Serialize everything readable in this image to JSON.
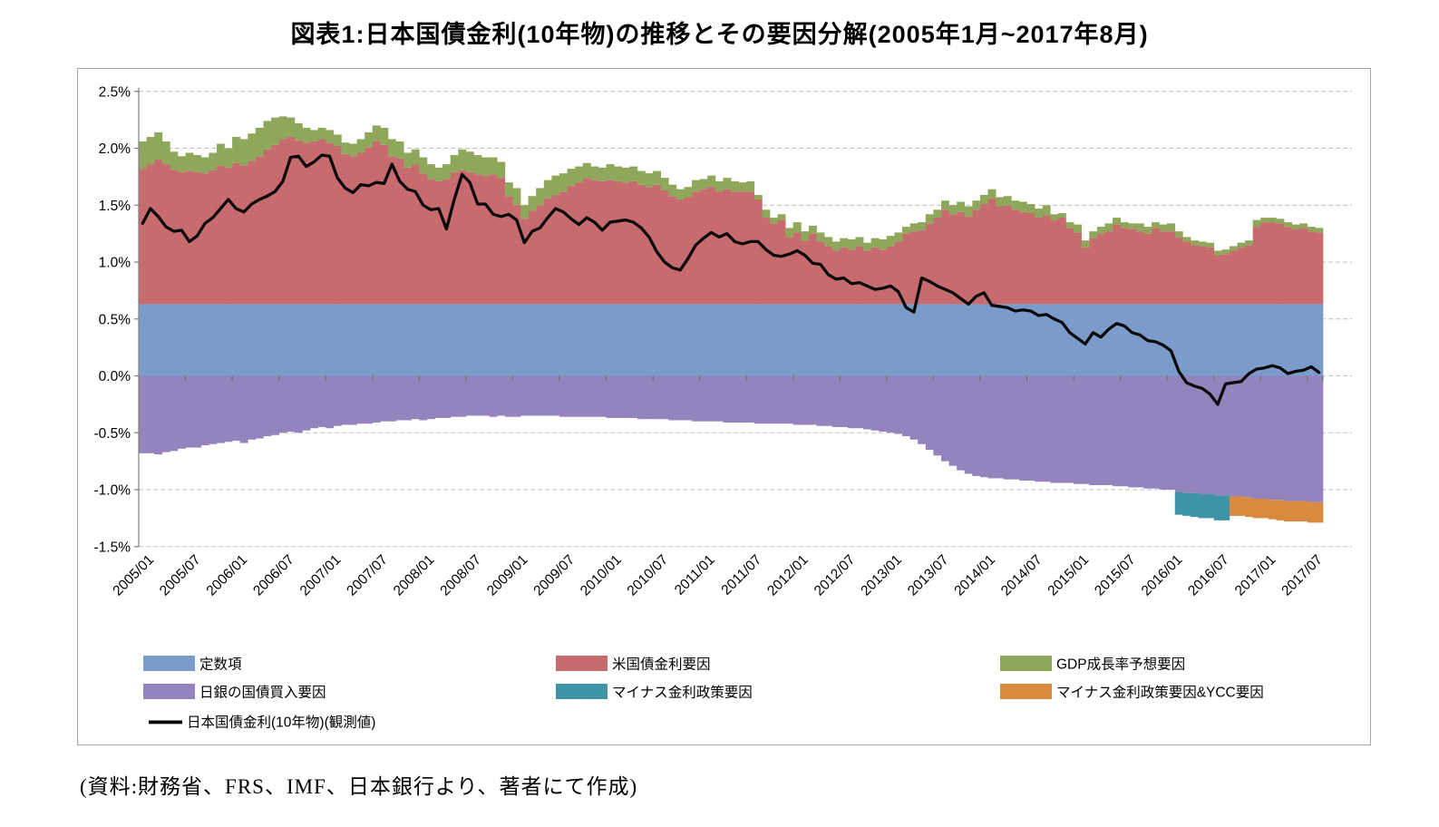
{
  "title": "図表1:日本国債金利(10年物)の推移とその要因分解(2005年1月~2017年8月)",
  "source_note": "(資料:財務省、FRS、IMF、日本銀行より、著者にて作成)",
  "chart": {
    "y_axis": {
      "labels": [
        "2.5%",
        "2.0%",
        "1.5%",
        "1.0%",
        "0.5%",
        "0.0%",
        "-0.5%",
        "-1.0%",
        "-1.5%"
      ],
      "max": 2.5,
      "min": -1.5,
      "step": 0.5
    },
    "x_axis": {
      "tick_labels": [
        "2005/01",
        "2005/07",
        "2006/01",
        "2006/07",
        "2007/01",
        "2007/07",
        "2008/01",
        "2008/07",
        "2009/01",
        "2009/07",
        "2010/01",
        "2010/07",
        "2011/01",
        "2011/07",
        "2012/01",
        "2012/07",
        "2013/01",
        "2013/07",
        "2014/01",
        "2014/07",
        "2015/01",
        "2015/07",
        "2016/01",
        "2016/07",
        "2017/01",
        "2017/07"
      ]
    },
    "legend": [
      {
        "label": "定数項",
        "color": "#7b9ccb",
        "shape": "rect",
        "col": 0,
        "row": 0
      },
      {
        "label": "米国債金利要因",
        "color": "#c76b6e",
        "shape": "rect",
        "col": 1,
        "row": 0
      },
      {
        "label": "GDP成長率予想要因",
        "color": "#8fa75b",
        "shape": "rect",
        "col": 2,
        "row": 0
      },
      {
        "label": "日銀の国債買入要因",
        "color": "#9384be",
        "shape": "rect",
        "col": 0,
        "row": 1
      },
      {
        "label": "マイナス金利政策要因",
        "color": "#3f93a6",
        "shape": "rect",
        "col": 1,
        "row": 1
      },
      {
        "label": "マイナス金利政策要因&YCC要因",
        "color": "#d98a3f",
        "shape": "rect",
        "col": 2,
        "row": 1
      },
      {
        "label": "日本国債金利(10年物)(観測値)",
        "color": "#000000",
        "shape": "line",
        "col": 0,
        "row": 2
      }
    ],
    "colors": {
      "gridline": "#bfbfbf",
      "axis": "#808080",
      "frame": "#a6a6a6",
      "observed_line": "#0a0a0a"
    }
  },
  "chart_data": {
    "type": "stacked-bar+line",
    "x_start": "2005/01",
    "x_end": "2017/08",
    "n_months": 152,
    "ylim": [
      -1.5,
      2.5
    ],
    "grid": true,
    "legend_position": "bottom",
    "units": "percent",
    "series": [
      {
        "name": "定数項",
        "type": "bar",
        "color": "#7b9ccb",
        "constant": 0.63
      },
      {
        "name": "米国債金利要因",
        "type": "bar",
        "color": "#c76b6e",
        "values": [
          1.19,
          1.23,
          1.27,
          1.23,
          1.18,
          1.16,
          1.17,
          1.16,
          1.15,
          1.18,
          1.22,
          1.2,
          1.24,
          1.22,
          1.26,
          1.3,
          1.36,
          1.4,
          1.45,
          1.47,
          1.44,
          1.42,
          1.43,
          1.45,
          1.42,
          1.39,
          1.32,
          1.3,
          1.33,
          1.38,
          1.43,
          1.4,
          1.3,
          1.28,
          1.2,
          1.23,
          1.15,
          1.1,
          1.08,
          1.1,
          1.16,
          1.18,
          1.16,
          1.14,
          1.13,
          1.14,
          1.11,
          0.95,
          0.87,
          0.75,
          0.82,
          0.87,
          0.93,
          0.96,
          0.99,
          1.04,
          1.07,
          1.11,
          1.09,
          1.08,
          1.09,
          1.08,
          1.07,
          1.08,
          1.05,
          1.03,
          1.05,
          1.0,
          0.95,
          0.92,
          0.94,
          0.99,
          1.01,
          1.03,
          0.99,
          1.01,
          0.99,
          0.99,
          0.99,
          0.92,
          0.76,
          0.71,
          0.74,
          0.59,
          0.63,
          0.56,
          0.62,
          0.55,
          0.51,
          0.47,
          0.5,
          0.48,
          0.51,
          0.47,
          0.5,
          0.48,
          0.51,
          0.55,
          0.62,
          0.64,
          0.65,
          0.71,
          0.76,
          0.83,
          0.79,
          0.81,
          0.77,
          0.83,
          0.88,
          0.93,
          0.86,
          0.87,
          0.83,
          0.81,
          0.8,
          0.76,
          0.78,
          0.74,
          0.76,
          0.67,
          0.63,
          0.5,
          0.58,
          0.62,
          0.64,
          0.7,
          0.67,
          0.66,
          0.64,
          0.62,
          0.67,
          0.64,
          0.64,
          0.59,
          0.55,
          0.52,
          0.51,
          0.5,
          0.43,
          0.44,
          0.47,
          0.5,
          0.52,
          0.68,
          0.72,
          0.72,
          0.71,
          0.68,
          0.66,
          0.67,
          0.64,
          0.63
        ]
      },
      {
        "name": "GDP成長率予想要因",
        "type": "bar",
        "color": "#8fa75b",
        "values": [
          0.24,
          0.24,
          0.24,
          0.2,
          0.16,
          0.14,
          0.16,
          0.15,
          0.14,
          0.15,
          0.19,
          0.17,
          0.23,
          0.23,
          0.24,
          0.25,
          0.25,
          0.24,
          0.2,
          0.17,
          0.15,
          0.13,
          0.1,
          0.1,
          0.11,
          0.1,
          0.1,
          0.11,
          0.12,
          0.13,
          0.14,
          0.15,
          0.15,
          0.15,
          0.13,
          0.13,
          0.14,
          0.13,
          0.12,
          0.13,
          0.15,
          0.18,
          0.18,
          0.17,
          0.16,
          0.15,
          0.14,
          0.12,
          0.15,
          0.12,
          0.13,
          0.15,
          0.16,
          0.17,
          0.16,
          0.15,
          0.14,
          0.13,
          0.12,
          0.12,
          0.14,
          0.13,
          0.13,
          0.13,
          0.12,
          0.12,
          0.12,
          0.11,
          0.1,
          0.09,
          0.09,
          0.1,
          0.09,
          0.1,
          0.09,
          0.1,
          0.09,
          0.08,
          0.09,
          0.04,
          0.07,
          0.05,
          0.05,
          0.08,
          0.09,
          0.08,
          0.07,
          0.08,
          0.08,
          0.08,
          0.08,
          0.09,
          0.08,
          0.07,
          0.08,
          0.09,
          0.09,
          0.08,
          0.06,
          0.07,
          0.07,
          0.08,
          0.07,
          0.08,
          0.08,
          0.09,
          0.09,
          0.08,
          0.08,
          0.08,
          0.08,
          0.08,
          0.08,
          0.09,
          0.08,
          0.08,
          0.09,
          0.05,
          0.04,
          0.05,
          0.07,
          0.06,
          0.06,
          0.06,
          0.07,
          0.06,
          0.05,
          0.05,
          0.07,
          0.06,
          0.05,
          0.06,
          0.07,
          0.05,
          0.04,
          0.04,
          0.04,
          0.04,
          0.04,
          0.04,
          0.04,
          0.04,
          0.04,
          0.06,
          0.04,
          0.04,
          0.04,
          0.04,
          0.04,
          0.04,
          0.04,
          0.04
        ]
      },
      {
        "name": "日銀の国債買入要因",
        "type": "bar",
        "color": "#9384be",
        "values": [
          -0.68,
          -0.68,
          -0.69,
          -0.67,
          -0.66,
          -0.64,
          -0.63,
          -0.63,
          -0.61,
          -0.6,
          -0.59,
          -0.58,
          -0.57,
          -0.59,
          -0.56,
          -0.55,
          -0.53,
          -0.52,
          -0.5,
          -0.49,
          -0.5,
          -0.48,
          -0.46,
          -0.45,
          -0.46,
          -0.44,
          -0.43,
          -0.43,
          -0.42,
          -0.42,
          -0.41,
          -0.4,
          -0.4,
          -0.39,
          -0.39,
          -0.38,
          -0.39,
          -0.38,
          -0.37,
          -0.37,
          -0.36,
          -0.36,
          -0.35,
          -0.35,
          -0.35,
          -0.36,
          -0.35,
          -0.36,
          -0.36,
          -0.35,
          -0.35,
          -0.35,
          -0.35,
          -0.35,
          -0.36,
          -0.36,
          -0.36,
          -0.36,
          -0.36,
          -0.36,
          -0.37,
          -0.37,
          -0.37,
          -0.37,
          -0.38,
          -0.38,
          -0.38,
          -0.38,
          -0.39,
          -0.39,
          -0.39,
          -0.4,
          -0.4,
          -0.4,
          -0.4,
          -0.41,
          -0.41,
          -0.41,
          -0.41,
          -0.42,
          -0.42,
          -0.42,
          -0.42,
          -0.42,
          -0.43,
          -0.43,
          -0.43,
          -0.44,
          -0.44,
          -0.45,
          -0.45,
          -0.46,
          -0.46,
          -0.47,
          -0.48,
          -0.49,
          -0.5,
          -0.51,
          -0.53,
          -0.56,
          -0.6,
          -0.65,
          -0.7,
          -0.75,
          -0.79,
          -0.83,
          -0.86,
          -0.88,
          -0.89,
          -0.9,
          -0.9,
          -0.91,
          -0.91,
          -0.92,
          -0.92,
          -0.93,
          -0.93,
          -0.94,
          -0.94,
          -0.94,
          -0.95,
          -0.95,
          -0.96,
          -0.96,
          -0.96,
          -0.97,
          -0.97,
          -0.98,
          -0.98,
          -0.99,
          -0.99,
          -1.0,
          -1.0,
          -1.02,
          -1.03,
          -1.03,
          -1.04,
          -1.04,
          -1.05,
          -1.05,
          -1.06,
          -1.06,
          -1.07,
          -1.08,
          -1.08,
          -1.09,
          -1.09,
          -1.1,
          -1.1,
          -1.1,
          -1.11,
          -1.11
        ]
      },
      {
        "name": "マイナス金利政策要因",
        "type": "bar",
        "color": "#3f93a6",
        "start_index": 133,
        "values": [
          -0.2,
          -0.2,
          -0.21,
          -0.21,
          -0.21,
          -0.22,
          -0.22
        ]
      },
      {
        "name": "マイナス金利政策要因&YCC要因",
        "type": "bar",
        "color": "#d98a3f",
        "start_index": 140,
        "values": [
          -0.17,
          -0.17,
          -0.17,
          -0.17,
          -0.17,
          -0.17,
          -0.18,
          -0.18,
          -0.18,
          -0.18,
          -0.18,
          -0.18
        ]
      },
      {
        "name": "日本国債金利(10年物)(観測値)",
        "type": "line",
        "color": "#0a0a0a",
        "values": [
          1.34,
          1.47,
          1.4,
          1.31,
          1.27,
          1.28,
          1.18,
          1.23,
          1.34,
          1.39,
          1.47,
          1.55,
          1.47,
          1.44,
          1.51,
          1.55,
          1.58,
          1.62,
          1.71,
          1.92,
          1.93,
          1.84,
          1.88,
          1.94,
          1.93,
          1.74,
          1.65,
          1.61,
          1.68,
          1.67,
          1.7,
          1.69,
          1.86,
          1.71,
          1.64,
          1.62,
          1.5,
          1.46,
          1.47,
          1.29,
          1.55,
          1.77,
          1.7,
          1.51,
          1.51,
          1.42,
          1.4,
          1.42,
          1.37,
          1.17,
          1.27,
          1.3,
          1.39,
          1.47,
          1.44,
          1.38,
          1.33,
          1.39,
          1.35,
          1.28,
          1.35,
          1.36,
          1.37,
          1.35,
          1.3,
          1.22,
          1.09,
          1.0,
          0.95,
          0.93,
          1.03,
          1.15,
          1.21,
          1.26,
          1.22,
          1.25,
          1.18,
          1.16,
          1.18,
          1.18,
          1.11,
          1.06,
          1.05,
          1.07,
          1.1,
          1.06,
          0.99,
          0.98,
          0.89,
          0.85,
          0.86,
          0.81,
          0.82,
          0.79,
          0.76,
          0.77,
          0.79,
          0.74,
          0.6,
          0.56,
          0.86,
          0.83,
          0.79,
          0.76,
          0.73,
          0.68,
          0.63,
          0.7,
          0.73,
          0.62,
          0.61,
          0.6,
          0.57,
          0.58,
          0.57,
          0.53,
          0.54,
          0.5,
          0.47,
          0.38,
          0.33,
          0.28,
          0.38,
          0.34,
          0.41,
          0.46,
          0.44,
          0.38,
          0.36,
          0.31,
          0.3,
          0.27,
          0.22,
          0.04,
          -0.06,
          -0.09,
          -0.11,
          -0.16,
          -0.25,
          -0.07,
          -0.06,
          -0.05,
          0.02,
          0.06,
          0.07,
          0.09,
          0.07,
          0.02,
          0.04,
          0.05,
          0.08,
          0.03
        ]
      }
    ]
  }
}
